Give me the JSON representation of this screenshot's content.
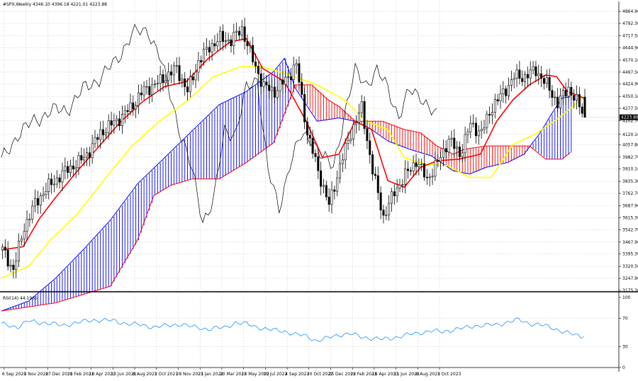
{
  "header": {
    "symbol_line": "#SPX,Weekly  4346.10 4396.18 4221.01 4223.88",
    "rsi_label": "RSI(14) 44.1965"
  },
  "colors": {
    "background": "#ffffff",
    "grid": "#c8c8c8",
    "candle": "#000000",
    "tenkan": "#ff0000",
    "kijun": "#ffff00",
    "chikou": "#000000",
    "cloud_bull": "#0000ff",
    "cloud_bear": "#ff0000",
    "rsi_line": "#1e90ff"
  },
  "price_axis": {
    "ticks": [
      "4864.90",
      "4792.30",
      "4717.50",
      "4644.90",
      "4570.10",
      "4497.50",
      "4424.90",
      "4350.10",
      "4277.50",
      "4202.70",
      "4120.10",
      "4057.80",
      "3982.70",
      "3910.10",
      "3835.30",
      "3762.70",
      "3687.90",
      "3615.30",
      "3542.70",
      "3467.90",
      "3395.30",
      "3320.50",
      "3247.90",
      "3175.30"
    ],
    "current_price": "4223.88"
  },
  "rsi_axis": {
    "ticks": [
      "100",
      "70",
      "30",
      "0"
    ]
  },
  "time_axis": {
    "labels": [
      "6 Sep 2020",
      "1 Nov 2020",
      "27 Dec 2020",
      "21 Feb 2021",
      "18 Apr 2021",
      "13 Jun 2021",
      "8 Aug 2021",
      "3 Oct 2021",
      "28 Nov 2021",
      "23 Jan 2022",
      "20 Mar 2022",
      "15 May 2022",
      "10 Jul 2022",
      "4 Sep 2022",
      "30 Oct 2022",
      "25 Dec 2022",
      "19 Feb 2023",
      "16 Apr 2023",
      "11 Jun 2023",
      "6 Aug 2023",
      "1 Oct 2023"
    ]
  },
  "chart_data": {
    "type": "candlestick",
    "title": "#SPX,Weekly",
    "ohlc_last": {
      "open": 4346.1,
      "high": 4396.18,
      "low": 4221.01,
      "close": 4223.88
    },
    "ylim": [
      3175.3,
      4900
    ],
    "grid": true,
    "weeks_plotted": 185,
    "weeks_forward_cloud": 26,
    "closes_anchor": [
      [
        0,
        3420
      ],
      [
        4,
        3300
      ],
      [
        8,
        3560
      ],
      [
        12,
        3700
      ],
      [
        16,
        3790
      ],
      [
        20,
        3850
      ],
      [
        24,
        3910
      ],
      [
        28,
        3950
      ],
      [
        32,
        4020
      ],
      [
        36,
        4130
      ],
      [
        40,
        4180
      ],
      [
        44,
        4230
      ],
      [
        48,
        4300
      ],
      [
        52,
        4390
      ],
      [
        56,
        4420
      ],
      [
        60,
        4470
      ],
      [
        64,
        4520
      ],
      [
        68,
        4380
      ],
      [
        72,
        4560
      ],
      [
        76,
        4650
      ],
      [
        80,
        4700
      ],
      [
        84,
        4690
      ],
      [
        88,
        4760
      ],
      [
        92,
        4570
      ],
      [
        96,
        4410
      ],
      [
        100,
        4380
      ],
      [
        104,
        4450
      ],
      [
        108,
        4540
      ],
      [
        112,
        4130
      ],
      [
        116,
        3900
      ],
      [
        120,
        3690
      ],
      [
        124,
        3930
      ],
      [
        128,
        4130
      ],
      [
        132,
        4280
      ],
      [
        136,
        3900
      ],
      [
        140,
        3620
      ],
      [
        144,
        3770
      ],
      [
        148,
        3870
      ],
      [
        152,
        3960
      ],
      [
        156,
        3850
      ],
      [
        160,
        3950
      ],
      [
        164,
        4090
      ],
      [
        168,
        4000
      ],
      [
        172,
        4180
      ],
      [
        176,
        4130
      ],
      [
        180,
        4290
      ],
      [
        184,
        4370
      ],
      [
        188,
        4470
      ],
      [
        192,
        4470
      ],
      [
        196,
        4510
      ],
      [
        200,
        4420
      ],
      [
        204,
        4310
      ],
      [
        208,
        4400
      ],
      [
        212,
        4290
      ],
      [
        214,
        4224
      ]
    ],
    "tenkan_anchor": [
      [
        0,
        3420
      ],
      [
        8,
        3440
      ],
      [
        14,
        3610
      ],
      [
        20,
        3740
      ],
      [
        28,
        3900
      ],
      [
        36,
        4050
      ],
      [
        44,
        4200
      ],
      [
        52,
        4320
      ],
      [
        60,
        4410
      ],
      [
        68,
        4440
      ],
      [
        76,
        4580
      ],
      [
        84,
        4680
      ],
      [
        90,
        4700
      ],
      [
        96,
        4520
      ],
      [
        104,
        4440
      ],
      [
        112,
        4200
      ],
      [
        118,
        3980
      ],
      [
        124,
        4000
      ],
      [
        130,
        4200
      ],
      [
        136,
        4150
      ],
      [
        142,
        3840
      ],
      [
        148,
        3800
      ],
      [
        154,
        3920
      ],
      [
        160,
        3960
      ],
      [
        168,
        3970
      ],
      [
        176,
        4000
      ],
      [
        182,
        4200
      ],
      [
        188,
        4330
      ],
      [
        194,
        4420
      ],
      [
        200,
        4480
      ],
      [
        204,
        4470
      ],
      [
        208,
        4380
      ],
      [
        214,
        4340
      ]
    ],
    "kijun_anchor": [
      [
        0,
        3250
      ],
      [
        10,
        3320
      ],
      [
        18,
        3480
      ],
      [
        28,
        3640
      ],
      [
        38,
        3850
      ],
      [
        48,
        4050
      ],
      [
        58,
        4200
      ],
      [
        68,
        4320
      ],
      [
        78,
        4470
      ],
      [
        88,
        4530
      ],
      [
        96,
        4530
      ],
      [
        106,
        4480
      ],
      [
        116,
        4420
      ],
      [
        126,
        4330
      ],
      [
        134,
        4200
      ],
      [
        142,
        4150
      ],
      [
        148,
        3980
      ],
      [
        156,
        3940
      ],
      [
        164,
        3930
      ],
      [
        172,
        3860
      ],
      [
        180,
        3860
      ],
      [
        188,
        4060
      ],
      [
        196,
        4120
      ],
      [
        204,
        4210
      ],
      [
        210,
        4290
      ],
      [
        214,
        4350
      ]
    ],
    "chikou_anchor": [
      [
        0,
        3960
      ],
      [
        6,
        4120
      ],
      [
        12,
        4200
      ],
      [
        18,
        4260
      ],
      [
        24,
        4270
      ],
      [
        30,
        4390
      ],
      [
        36,
        4460
      ],
      [
        42,
        4560
      ],
      [
        48,
        4730
      ],
      [
        54,
        4750
      ],
      [
        58,
        4600
      ],
      [
        62,
        4360
      ],
      [
        66,
        4120
      ],
      [
        70,
        3900
      ],
      [
        74,
        3600
      ],
      [
        78,
        3720
      ],
      [
        82,
        4140
      ],
      [
        86,
        4130
      ],
      [
        90,
        4390
      ],
      [
        94,
        4460
      ],
      [
        98,
        3900
      ],
      [
        102,
        3660
      ],
      [
        106,
        3950
      ],
      [
        110,
        4100
      ],
      [
        114,
        4100
      ],
      [
        118,
        3980
      ],
      [
        122,
        3920
      ],
      [
        126,
        4240
      ],
      [
        130,
        4500
      ],
      [
        134,
        4430
      ],
      [
        138,
        4500
      ],
      [
        142,
        4400
      ],
      [
        146,
        4230
      ],
      [
        150,
        4380
      ],
      [
        154,
        4360
      ],
      [
        158,
        4260
      ],
      [
        160,
        4224
      ]
    ],
    "span_a_anchor": [
      [
        0,
        3050
      ],
      [
        10,
        3110
      ],
      [
        20,
        3250
      ],
      [
        30,
        3420
      ],
      [
        40,
        3600
      ],
      [
        50,
        3820
      ],
      [
        60,
        3980
      ],
      [
        70,
        4140
      ],
      [
        80,
        4300
      ],
      [
        90,
        4380
      ],
      [
        100,
        4500
      ],
      [
        104,
        4580
      ],
      [
        108,
        4400
      ],
      [
        116,
        4200
      ],
      [
        124,
        4220
      ],
      [
        130,
        4200
      ],
      [
        136,
        4150
      ],
      [
        142,
        4080
      ],
      [
        150,
        4030
      ],
      [
        158,
        3990
      ],
      [
        166,
        3900
      ],
      [
        172,
        3880
      ],
      [
        178,
        3920
      ],
      [
        186,
        3950
      ],
      [
        192,
        4000
      ],
      [
        198,
        4130
      ],
      [
        202,
        4240
      ],
      [
        206,
        4340
      ],
      [
        210,
        4350
      ],
      [
        216,
        4370
      ],
      [
        224,
        4350
      ]
    ],
    "span_b_anchor": [
      [
        0,
        3050
      ],
      [
        20,
        3100
      ],
      [
        40,
        3200
      ],
      [
        50,
        3480
      ],
      [
        56,
        3750
      ],
      [
        62,
        3810
      ],
      [
        70,
        3850
      ],
      [
        80,
        3850
      ],
      [
        90,
        3950
      ],
      [
        100,
        4070
      ],
      [
        108,
        4420
      ],
      [
        114,
        4420
      ],
      [
        120,
        4330
      ],
      [
        124,
        4290
      ],
      [
        130,
        4200
      ],
      [
        140,
        4200
      ],
      [
        148,
        4150
      ],
      [
        154,
        4130
      ],
      [
        160,
        4050
      ],
      [
        166,
        4000
      ],
      [
        170,
        4030
      ],
      [
        178,
        4050
      ],
      [
        186,
        4050
      ],
      [
        194,
        4050
      ],
      [
        200,
        3970
      ],
      [
        206,
        3970
      ],
      [
        212,
        4050
      ],
      [
        218,
        4060
      ],
      [
        224,
        4160
      ]
    ]
  },
  "rsi_data": {
    "period": 14,
    "last": 44.1965,
    "ylim": [
      0,
      100
    ],
    "anchor": [
      [
        0,
        62
      ],
      [
        6,
        58
      ],
      [
        10,
        66
      ],
      [
        16,
        64
      ],
      [
        22,
        60
      ],
      [
        28,
        64
      ],
      [
        34,
        68
      ],
      [
        40,
        67
      ],
      [
        46,
        63
      ],
      [
        50,
        61
      ],
      [
        56,
        58
      ],
      [
        62,
        60
      ],
      [
        66,
        62
      ],
      [
        70,
        58
      ],
      [
        76,
        55
      ],
      [
        82,
        57
      ],
      [
        86,
        64
      ],
      [
        90,
        62
      ],
      [
        94,
        58
      ],
      [
        98,
        54
      ],
      [
        104,
        52
      ],
      [
        108,
        47
      ],
      [
        112,
        45
      ],
      [
        116,
        38
      ],
      [
        120,
        42
      ],
      [
        124,
        47
      ],
      [
        128,
        48
      ],
      [
        132,
        44
      ],
      [
        136,
        42
      ],
      [
        140,
        40
      ],
      [
        146,
        44
      ],
      [
        150,
        47
      ],
      [
        154,
        50
      ],
      [
        158,
        52
      ],
      [
        162,
        51
      ],
      [
        166,
        54
      ],
      [
        170,
        56
      ],
      [
        174,
        60
      ],
      [
        178,
        60
      ],
      [
        182,
        61
      ],
      [
        186,
        65
      ],
      [
        190,
        68
      ],
      [
        194,
        63
      ],
      [
        198,
        61
      ],
      [
        202,
        57
      ],
      [
        206,
        52
      ],
      [
        210,
        47
      ],
      [
        212,
        45
      ],
      [
        214,
        44
      ]
    ]
  }
}
